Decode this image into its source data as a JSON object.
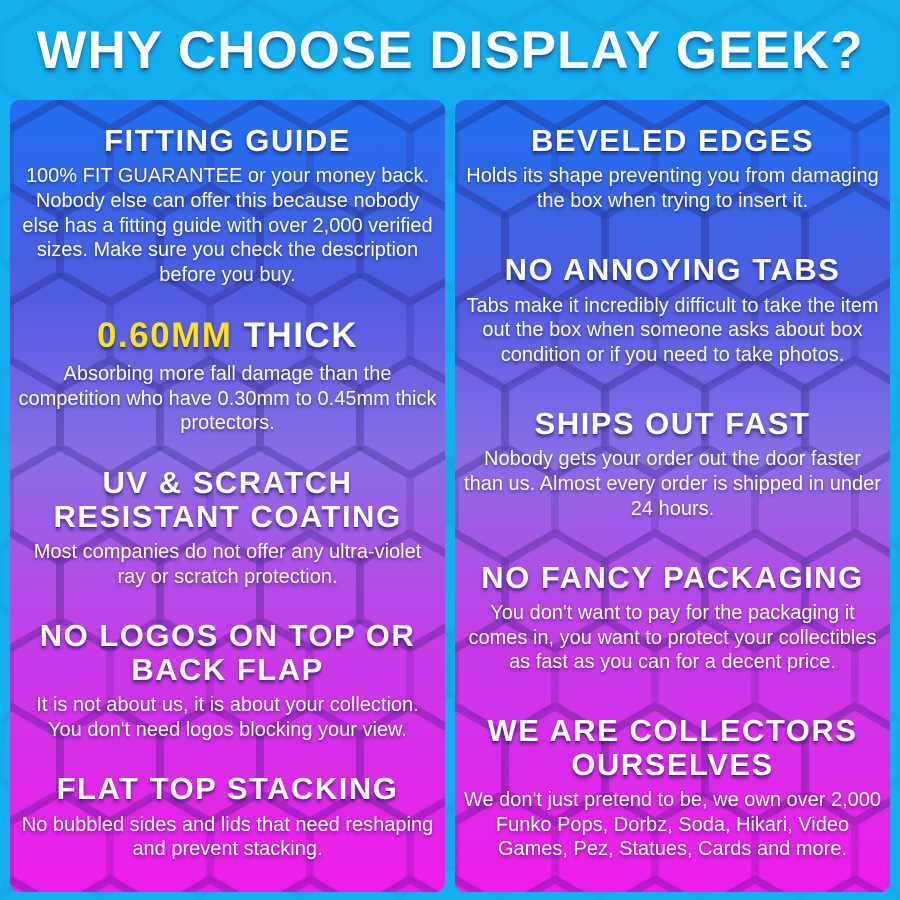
{
  "theme": {
    "background_cyan": "#14aeef",
    "gradient_top_blue": "#1568ee",
    "gradient_mid_purple": "#8466e6",
    "gradient_bottom_magenta": "#ee12e8",
    "highlight_yellow": "#f7e41b",
    "text_color": "#ffffff"
  },
  "header": {
    "title": "WHY CHOOSE DISPLAY GEEK?"
  },
  "columns": {
    "left": [
      {
        "heading": "FITTING GUIDE",
        "body": "100% FIT GUARANTEE or your money back. Nobody else can offer this because nobody else has a fitting guide with over 2,000 verified sizes. Make sure you check the description before you buy."
      },
      {
        "heading_highlight": "0.60MM",
        "heading": "THICK",
        "body": "Absorbing more fall damage than the competition who have 0.30mm to 0.45mm thick protectors."
      },
      {
        "heading": "UV & SCRATCH RESISTANT COATING",
        "body": "Most companies do not offer any ultra-violet ray or scratch protection."
      },
      {
        "heading": "NO LOGOS ON TOP OR BACK FLAP",
        "body": "It is not about us, it is about your collection. You don't need logos blocking your view."
      },
      {
        "heading": "FLAT TOP STACKING",
        "body": "No bubbled sides and lids that need reshaping and prevent stacking."
      }
    ],
    "right": [
      {
        "heading": "BEVELED EDGES",
        "body": "Holds its shape preventing you from damaging the box when trying to insert it."
      },
      {
        "heading": "NO ANNOYING TABS",
        "body": "Tabs make it incredibly difficult to take the item out the box when someone asks about box condition or if you need to take photos."
      },
      {
        "heading": "SHIPS OUT FAST",
        "body": "Nobody gets your order out the door faster than us. Almost every order is shipped in under 24 hours."
      },
      {
        "heading": "NO FANCY PACKAGING",
        "body": "You don't want to pay for the packaging it comes in, you want to protect your collectibles as fast as you can for a decent price."
      },
      {
        "heading": "WE ARE COLLECTORS OURSELVES",
        "body": "We don't just pretend to be, we own over 2,000 Funko Pops, Dorbz, Soda, Hikari, Video Games, Pez, Statues, Cards and more."
      }
    ]
  }
}
